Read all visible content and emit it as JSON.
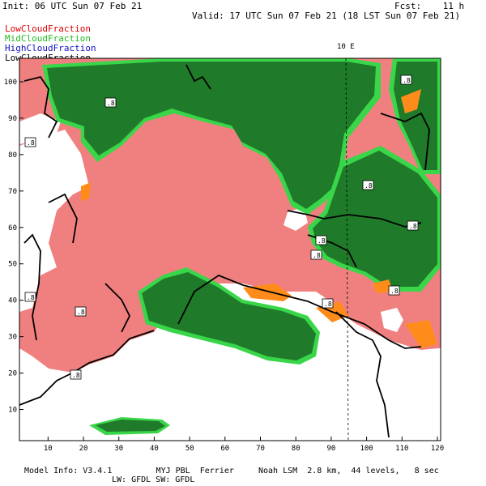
{
  "header": {
    "init": "Init: 06 UTC Sun 07 Feb 21",
    "fcst": "Fcst:    11 h",
    "valid": "Valid: 17 UTC Sun 07 Feb 21 (18 LST Sun 07 Feb 21)"
  },
  "legend": {
    "low": "LowCloudFraction",
    "mid": "MidCloudFraction",
    "high": "HighCloudFraction",
    "mean": "LowCloudFraction"
  },
  "colors": {
    "low": "#f08080",
    "mid": "#1f7a2a",
    "mid_edge": "#39d64a",
    "high": "#1010c0",
    "orange": "#ff8c1a"
  },
  "meridian_label": "10 E",
  "contour_labels": [
    ".8",
    ".8",
    ".8",
    ".8",
    ".8",
    ".8",
    ".8",
    ".8",
    ".8",
    ".8",
    ".8",
    ".8"
  ],
  "x_axis": {
    "ticks": [
      "10",
      "20",
      "30",
      "40",
      "50",
      "60",
      "70",
      "80",
      "90",
      "100",
      "110",
      "120"
    ]
  },
  "y_axis": {
    "ticks": [
      "10",
      "20",
      "30",
      "40",
      "50",
      "60",
      "70",
      "80",
      "90",
      "100"
    ]
  },
  "footer": {
    "line1": "Model Info: V3.4.1         MYJ PBL  Ferrier     Noah LSM  2.8 km,  44 levels,   8 sec",
    "line2": "LW: GFDL SW: GFDL"
  }
}
